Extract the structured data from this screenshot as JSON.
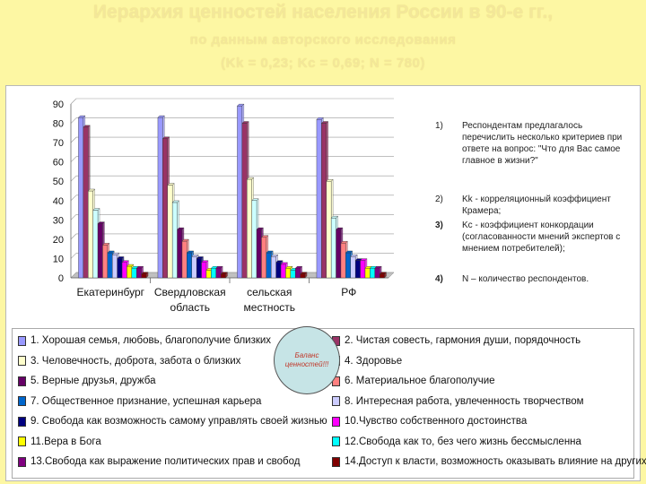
{
  "header": {
    "title": "Иерархия ценностей населения России в 90-е гг.,",
    "subtitle": "по данным авторского исследования",
    "stats": "(Kk = 0,23; Kc = 0,69; N = 780)"
  },
  "chart_data": {
    "type": "bar",
    "categories": [
      [
        "Екатеринбург"
      ],
      [
        "Свердловская",
        "область"
      ],
      [
        "сельская",
        "местность"
      ],
      [
        "РФ"
      ]
    ],
    "ylim": [
      0,
      90
    ],
    "yticks": [
      0,
      10,
      20,
      30,
      40,
      50,
      60,
      70,
      80,
      90
    ],
    "grid": true,
    "series": [
      {
        "name": "1.",
        "color": "#9999ff",
        "values": [
          83,
          83,
          89,
          82
        ]
      },
      {
        "name": "2.",
        "color": "#993366",
        "values": [
          78,
          72,
          80,
          80
        ]
      },
      {
        "name": "3.",
        "color": "#ffffcc",
        "values": [
          45,
          48,
          51,
          50
        ]
      },
      {
        "name": "4.",
        "color": "#ccffff",
        "values": [
          35,
          39,
          40,
          31
        ]
      },
      {
        "name": "5.",
        "color": "#660066",
        "values": [
          28,
          25,
          25,
          25
        ]
      },
      {
        "name": "6.",
        "color": "#ff8080",
        "values": [
          17,
          19,
          21,
          18
        ]
      },
      {
        "name": "7.",
        "color": "#0066cc",
        "values": [
          13,
          13,
          13,
          13
        ]
      },
      {
        "name": "8.",
        "color": "#ccccff",
        "values": [
          12,
          11,
          11,
          11
        ]
      },
      {
        "name": "9.",
        "color": "#000080",
        "values": [
          10,
          10,
          8,
          9
        ]
      },
      {
        "name": "10.",
        "color": "#ff00ff",
        "values": [
          8,
          8,
          7,
          9
        ]
      },
      {
        "name": "11.",
        "color": "#ffff00",
        "values": [
          6,
          4,
          5,
          5
        ]
      },
      {
        "name": "12.",
        "color": "#00ffff",
        "values": [
          5,
          5,
          4,
          5
        ]
      },
      {
        "name": "13.",
        "color": "#800080",
        "values": [
          5,
          5,
          5,
          5
        ]
      },
      {
        "name": "14.",
        "color": "#800000",
        "values": [
          2,
          2,
          2,
          2
        ]
      }
    ]
  },
  "notes": [
    {
      "num": "1)",
      "text": "Респондентам предлагалось перечислить несколько критериев при ответе на вопрос: \"Что для Вас самое главное в жизни?\""
    },
    {
      "num": "2)",
      "text": "Kk  - корреляционный коэффициент Крамера;"
    },
    {
      "num": "3)",
      "text": "Kc  -  коэффициент конкордации (согласованности мнений экспертов с мнением потребителей);"
    },
    {
      "num": "4)",
      "text": "N – количество респондентов."
    }
  ],
  "legend": [
    {
      "label": "1.    Хорошая семья, любовь, благополучие близких",
      "color": "#9999ff"
    },
    {
      "label": "2.    Чистая совесть, гармония души, порядочность",
      "color": "#993366"
    },
    {
      "label": "3.    Человечность, доброта, забота о близких",
      "color": "#ffffcc"
    },
    {
      "label": "4.    Здоровье",
      "color": "#ccffff"
    },
    {
      "label": "5.    Верные друзья, дружба",
      "color": "#660066"
    },
    {
      "label": "6.    Материальное благополучие",
      "color": "#ff8080"
    },
    {
      "label": "7.    Общественное признание, успешная карьера",
      "color": "#0066cc"
    },
    {
      "label": "8.    Интересная работа, увлеченность творчеством",
      "color": "#ccccff"
    },
    {
      "label": "9.    Свобода как возможность самому управлять своей жизнью",
      "color": "#000080"
    },
    {
      "label": "10.Чувство собственного достоинства",
      "color": "#ff00ff"
    },
    {
      "label": "11.Вера в Бога",
      "color": "#ffff00"
    },
    {
      "label": "12.Свобода как то, без чего жизнь бессмысленна",
      "color": "#00ffff"
    },
    {
      "label": "13.Свобода как выражение политических прав и свобод",
      "color": "#800080"
    },
    {
      "label": "14.Доступ к власти, возможность оказывать влияние на других",
      "color": "#800000"
    }
  ],
  "balance": {
    "line1": "Баланс",
    "line2": "ценностей!!!"
  }
}
